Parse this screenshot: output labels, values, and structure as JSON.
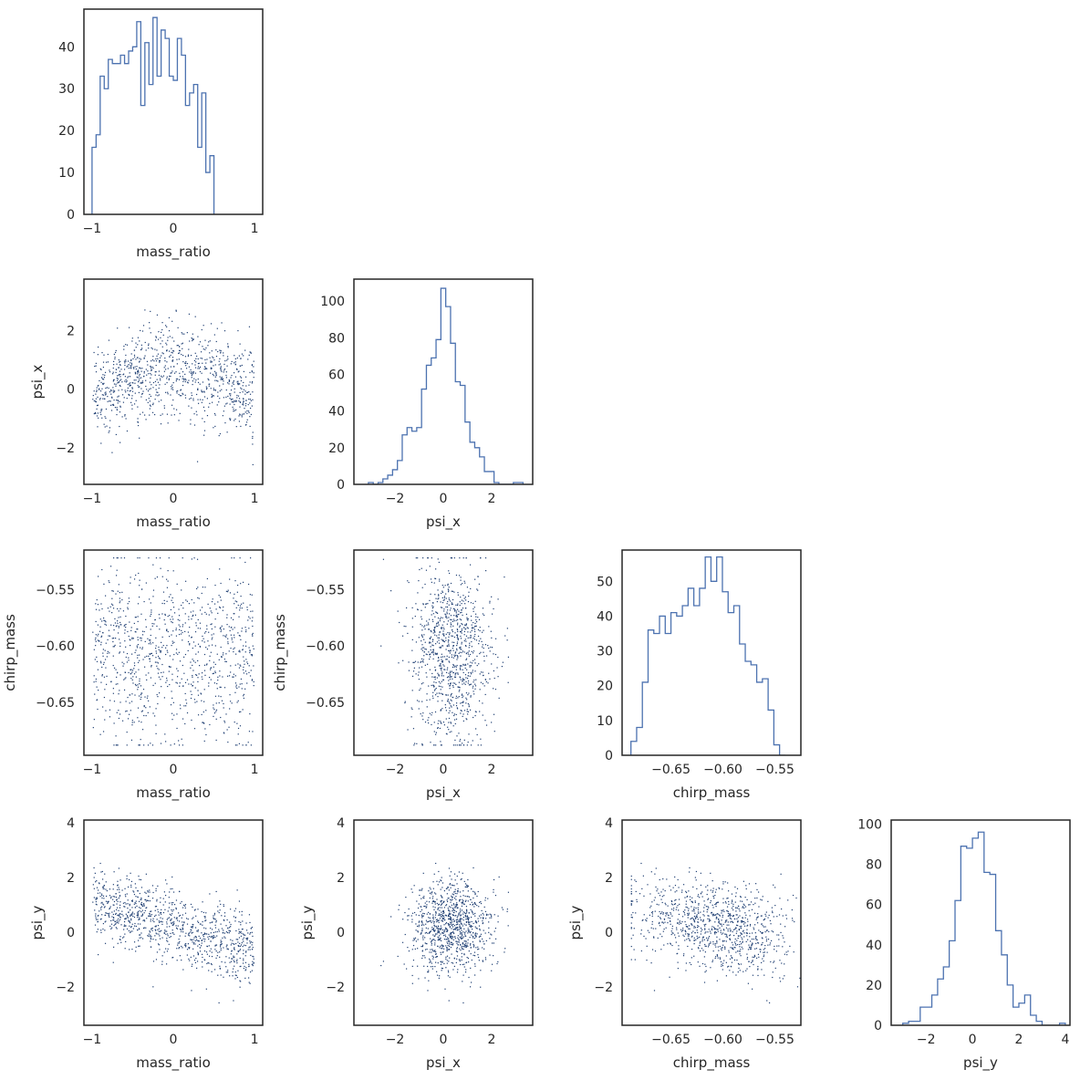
{
  "chart_data": [
    {
      "panel": "hist-mass_ratio",
      "type": "histogram",
      "xlabel": "mass_ratio",
      "ylabel": "",
      "xlim": [
        -1.1,
        1.1
      ],
      "ylim": [
        0,
        49
      ],
      "xticks": [
        -1,
        0,
        1
      ],
      "yticks": [
        0,
        10,
        20,
        30,
        40
      ],
      "bin_edges_start": -1.0,
      "bin_width": 0.05,
      "counts": [
        16,
        19,
        33,
        30,
        37,
        36,
        36,
        38,
        36,
        39,
        40,
        46,
        26,
        41,
        31,
        47,
        33,
        44,
        42,
        33,
        32,
        42,
        38,
        26,
        29,
        31,
        16,
        29,
        10,
        14
      ]
    },
    {
      "panel": "hist-psi_x",
      "type": "histogram",
      "xlabel": "psi_x",
      "ylabel": "",
      "xlim": [
        -3.7,
        3.7
      ],
      "ylim": [
        0,
        112
      ],
      "xticks": [
        -2,
        0,
        2
      ],
      "yticks": [
        0,
        20,
        40,
        60,
        80,
        100
      ],
      "bin_edges_start": -3.1,
      "bin_width": 0.2,
      "counts": [
        1,
        0,
        1,
        3,
        5,
        8,
        13,
        27,
        31,
        29,
        31,
        52,
        65,
        69,
        79,
        107,
        97,
        77,
        56,
        54,
        34,
        23,
        20,
        15,
        7,
        7,
        1,
        0,
        0,
        0,
        1,
        1
      ]
    },
    {
      "panel": "hist-chirp_mass",
      "type": "histogram",
      "xlabel": "chirp_mass",
      "ylabel": "",
      "xlim": [
        -0.697,
        -0.525
      ],
      "ylim": [
        0,
        59
      ],
      "xticks": [
        -0.65,
        -0.6,
        -0.55
      ],
      "xticklabels": [
        "−0.65",
        "−0.60",
        "−0.55"
      ],
      "yticks": [
        0,
        10,
        20,
        30,
        40,
        50
      ],
      "bin_edges_start": -0.6885,
      "bin_width": 0.0055,
      "counts": [
        4,
        8,
        21,
        36,
        35,
        40,
        35,
        41,
        40,
        43,
        48,
        43,
        48,
        57,
        50,
        57,
        47,
        41,
        43,
        32,
        27,
        26,
        21,
        22,
        13,
        3,
        0
      ]
    },
    {
      "panel": "hist-psi_y",
      "type": "histogram",
      "xlabel": "psi_y",
      "ylabel": "",
      "xlim": [
        -3.5,
        4.2
      ],
      "ylim": [
        0,
        102
      ],
      "xticks": [
        -2,
        0,
        2,
        4
      ],
      "yticks": [
        0,
        20,
        40,
        60,
        80,
        100
      ],
      "bin_edges_start": -3.0,
      "bin_width": 0.25,
      "counts": [
        1,
        2,
        2,
        9,
        9,
        15,
        23,
        29,
        42,
        62,
        89,
        88,
        93,
        96,
        76,
        75,
        47,
        35,
        20,
        9,
        11,
        15,
        5,
        2,
        0,
        0,
        0,
        1
      ]
    },
    {
      "panel": "scatter-mass_ratio-psi_x",
      "type": "scatter",
      "xlabel": "mass_ratio",
      "ylabel": "psi_x",
      "xlim": [
        -1.1,
        1.1
      ],
      "ylim": [
        -3.25,
        3.75
      ],
      "xticks": [
        -1,
        0,
        1
      ],
      "yticks": [
        -2,
        0,
        2
      ],
      "n_points": 1000,
      "relation": "psi_x ≈ 0.7 − 1.0·mass_ratio² with spread 0.8"
    },
    {
      "panel": "scatter-mass_ratio-chirp_mass",
      "type": "scatter",
      "xlabel": "mass_ratio",
      "ylabel": "chirp_mass",
      "xlim": [
        -1.1,
        1.1
      ],
      "ylim": [
        -0.697,
        -0.515
      ],
      "xticks": [
        -1,
        0,
        1
      ],
      "yticks": [
        -0.65,
        -0.6,
        -0.55
      ],
      "yticklabels": [
        "−0.65",
        "−0.60",
        "−0.55"
      ],
      "n_points": 1000,
      "relation": "uncorrelated"
    },
    {
      "panel": "scatter-psi_x-chirp_mass",
      "type": "scatter",
      "xlabel": "psi_x",
      "ylabel": "chirp_mass",
      "xlim": [
        -3.7,
        3.7
      ],
      "ylim": [
        -0.697,
        -0.515
      ],
      "xticks": [
        -2,
        0,
        2
      ],
      "yticks": [
        -0.65,
        -0.6,
        -0.55
      ],
      "yticklabels": [
        "−0.65",
        "−0.60",
        "−0.55"
      ],
      "n_points": 1000,
      "relation": "uncorrelated"
    },
    {
      "panel": "scatter-mass_ratio-psi_y",
      "type": "scatter",
      "xlabel": "mass_ratio",
      "ylabel": "psi_y",
      "xlim": [
        -1.1,
        1.1
      ],
      "ylim": [
        -3.4,
        4.1
      ],
      "xticks": [
        -1,
        0,
        1
      ],
      "yticks": [
        -2,
        0,
        2,
        4
      ],
      "n_points": 1000,
      "relation": "psi_y ≈ 0.2 − 0.9·mass_ratio with spread 0.6"
    },
    {
      "panel": "scatter-psi_x-psi_y",
      "type": "scatter",
      "xlabel": "psi_x",
      "ylabel": "psi_y",
      "xlim": [
        -3.7,
        3.7
      ],
      "ylim": [
        -3.4,
        4.1
      ],
      "xticks": [
        -2,
        0,
        2
      ],
      "yticks": [
        -2,
        0,
        2,
        4
      ],
      "n_points": 1000,
      "relation": "weak"
    },
    {
      "panel": "scatter-chirp_mass-psi_y",
      "type": "scatter",
      "xlabel": "chirp_mass",
      "ylabel": "psi_y",
      "xlim": [
        -0.697,
        -0.525
      ],
      "ylim": [
        -3.4,
        4.1
      ],
      "xticks": [
        -0.65,
        -0.6,
        -0.55
      ],
      "xticklabels": [
        "−0.65",
        "−0.60",
        "−0.55"
      ],
      "yticks": [
        -2,
        0,
        2,
        4
      ],
      "n_points": 1000,
      "relation": "psi_y decreases as chirp_mass increases"
    }
  ]
}
